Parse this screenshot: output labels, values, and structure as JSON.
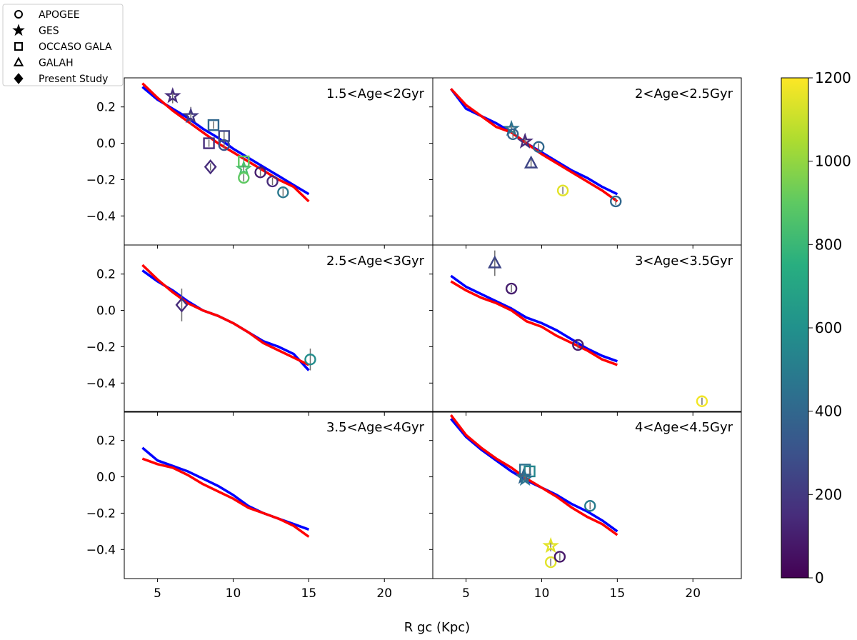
{
  "chart_data": {
    "type": "scatter",
    "xlabel": "R gc (Kpc)",
    "ylabel": "",
    "xlim": [
      2.8,
      23.2
    ],
    "ylim": [
      -0.56,
      0.36
    ],
    "x_ticks": [
      5,
      10,
      15,
      20
    ],
    "y_ticks": [
      0.2,
      0.0,
      -0.2,
      -0.4
    ],
    "x_tick_labels": [
      "5",
      "10",
      "15",
      "20"
    ],
    "y_tick_labels": [
      "0.2",
      "0.0",
      "−0.2",
      "−0.4"
    ],
    "legend": {
      "placement": "top-left",
      "entries": [
        {
          "label": "APOGEE",
          "marker": "circle"
        },
        {
          "label": "GES",
          "marker": "star"
        },
        {
          "label": "OCCASO GALA",
          "marker": "square"
        },
        {
          "label": "GALAH",
          "marker": "triangle"
        },
        {
          "label": "Present Study",
          "marker": "diamond"
        }
      ]
    },
    "colorbar": {
      "colormap": "viridis",
      "min": 0,
      "max": 1200,
      "ticks": [
        0,
        200,
        400,
        600,
        800,
        1000,
        1200
      ],
      "tick_labels": [
        "0",
        "200",
        "400",
        "600",
        "800",
        "1000",
        "1200"
      ]
    },
    "series_colors": {
      "model_blue": "#0000ff",
      "model_red": "#ff0000"
    },
    "panels": [
      {
        "title": "1.5<Age<2Gyr",
        "blue": [
          [
            4,
            0.31
          ],
          [
            5,
            0.24
          ],
          [
            6,
            0.19
          ],
          [
            7,
            0.14
          ],
          [
            8,
            0.08
          ],
          [
            9,
            0.03
          ],
          [
            10,
            -0.03
          ],
          [
            11,
            -0.08
          ],
          [
            12,
            -0.13
          ],
          [
            13,
            -0.18
          ],
          [
            14,
            -0.23
          ],
          [
            15,
            -0.28
          ]
        ],
        "red": [
          [
            4,
            0.33
          ],
          [
            5,
            0.25
          ],
          [
            6,
            0.18
          ],
          [
            7,
            0.12
          ],
          [
            8,
            0.06
          ],
          [
            9,
            0.0
          ],
          [
            10,
            -0.05
          ],
          [
            11,
            -0.1
          ],
          [
            12,
            -0.15
          ],
          [
            13,
            -0.2
          ],
          [
            14,
            -0.24
          ],
          [
            15,
            -0.32
          ]
        ],
        "points": [
          {
            "x": 6.0,
            "y": 0.26,
            "err": 0.04,
            "marker": "star",
            "c": 150
          },
          {
            "x": 7.2,
            "y": 0.15,
            "err": 0.05,
            "marker": "star",
            "c": 200
          },
          {
            "x": 8.4,
            "y": 0.0,
            "err": 0.02,
            "marker": "square",
            "c": 150
          },
          {
            "x": 8.7,
            "y": 0.1,
            "err": 0.02,
            "marker": "square",
            "c": 400
          },
          {
            "x": 9.4,
            "y": 0.04,
            "err": 0.03,
            "marker": "square",
            "c": 250
          },
          {
            "x": 9.4,
            "y": -0.01,
            "err": 0.02,
            "marker": "circle",
            "c": 300
          },
          {
            "x": 8.5,
            "y": -0.13,
            "err": 0.02,
            "marker": "diamond",
            "c": 150
          },
          {
            "x": 10.7,
            "y": -0.1,
            "err": 0.03,
            "marker": "square",
            "c": 900
          },
          {
            "x": 10.7,
            "y": -0.14,
            "err": 0.02,
            "marker": "star",
            "c": 850
          },
          {
            "x": 10.7,
            "y": -0.19,
            "err": 0.02,
            "marker": "circle",
            "c": 900
          },
          {
            "x": 11.8,
            "y": -0.16,
            "err": 0.02,
            "marker": "circle",
            "c": 100
          },
          {
            "x": 12.6,
            "y": -0.21,
            "err": 0.02,
            "marker": "circle",
            "c": 150
          },
          {
            "x": 13.3,
            "y": -0.27,
            "err": 0.02,
            "marker": "circle",
            "c": 480
          }
        ]
      },
      {
        "title": "2<Age<2.5Gyr",
        "blue": [
          [
            4,
            0.3
          ],
          [
            5,
            0.19
          ],
          [
            6,
            0.15
          ],
          [
            7,
            0.11
          ],
          [
            8,
            0.06
          ],
          [
            9,
            0.0
          ],
          [
            10,
            -0.05
          ],
          [
            11,
            -0.1
          ],
          [
            12,
            -0.15
          ],
          [
            13,
            -0.19
          ],
          [
            14,
            -0.24
          ],
          [
            15,
            -0.28
          ]
        ],
        "red": [
          [
            4,
            0.3
          ],
          [
            5,
            0.21
          ],
          [
            6,
            0.15
          ],
          [
            7,
            0.09
          ],
          [
            8,
            0.06
          ],
          [
            9,
            0.0
          ],
          [
            10,
            -0.06
          ],
          [
            11,
            -0.11
          ],
          [
            12,
            -0.16
          ],
          [
            13,
            -0.21
          ],
          [
            14,
            -0.26
          ],
          [
            15,
            -0.32
          ]
        ],
        "points": [
          {
            "x": 8.0,
            "y": 0.08,
            "err": 0.02,
            "marker": "star",
            "c": 450
          },
          {
            "x": 8.1,
            "y": 0.05,
            "err": 0.02,
            "marker": "circle",
            "c": 380
          },
          {
            "x": 8.9,
            "y": 0.01,
            "err": 0.02,
            "marker": "star",
            "c": 150
          },
          {
            "x": 9.8,
            "y": -0.02,
            "err": 0.02,
            "marker": "circle",
            "c": 400
          },
          {
            "x": 9.3,
            "y": -0.11,
            "err": 0.02,
            "marker": "triangle",
            "c": 250
          },
          {
            "x": 11.4,
            "y": -0.26,
            "err": 0.02,
            "marker": "circle",
            "c": 1150
          },
          {
            "x": 14.9,
            "y": -0.32,
            "err": 0.02,
            "marker": "circle",
            "c": 400
          }
        ]
      },
      {
        "title": "2.5<Age<3Gyr",
        "blue": [
          [
            4,
            0.22
          ],
          [
            5,
            0.16
          ],
          [
            6,
            0.11
          ],
          [
            7,
            0.05
          ],
          [
            8,
            0.0
          ],
          [
            9,
            -0.03
          ],
          [
            10,
            -0.07
          ],
          [
            11,
            -0.12
          ],
          [
            12,
            -0.17
          ],
          [
            13,
            -0.2
          ],
          [
            14,
            -0.24
          ],
          [
            15,
            -0.33
          ]
        ],
        "red": [
          [
            4,
            0.25
          ],
          [
            5,
            0.17
          ],
          [
            6,
            0.1
          ],
          [
            7,
            0.04
          ],
          [
            8,
            0.0
          ],
          [
            9,
            -0.03
          ],
          [
            10,
            -0.07
          ],
          [
            11,
            -0.12
          ],
          [
            12,
            -0.18
          ],
          [
            13,
            -0.22
          ],
          [
            14,
            -0.26
          ],
          [
            15,
            -0.3
          ]
        ],
        "points": [
          {
            "x": 6.6,
            "y": 0.03,
            "err": 0.09,
            "marker": "diamond",
            "c": 150
          },
          {
            "x": 15.1,
            "y": -0.27,
            "err": 0.06,
            "marker": "circle",
            "c": 580
          }
        ]
      },
      {
        "title": "3<Age<3.5Gyr",
        "blue": [
          [
            4,
            0.19
          ],
          [
            5,
            0.13
          ],
          [
            6,
            0.09
          ],
          [
            7,
            0.05
          ],
          [
            8,
            0.01
          ],
          [
            9,
            -0.04
          ],
          [
            10,
            -0.07
          ],
          [
            11,
            -0.11
          ],
          [
            12,
            -0.16
          ],
          [
            13,
            -0.21
          ],
          [
            14,
            -0.25
          ],
          [
            15,
            -0.28
          ]
        ],
        "red": [
          [
            4,
            0.16
          ],
          [
            5,
            0.11
          ],
          [
            6,
            0.07
          ],
          [
            7,
            0.04
          ],
          [
            8,
            0.0
          ],
          [
            9,
            -0.06
          ],
          [
            10,
            -0.09
          ],
          [
            11,
            -0.14
          ],
          [
            12,
            -0.18
          ],
          [
            13,
            -0.22
          ],
          [
            14,
            -0.27
          ],
          [
            15,
            -0.3
          ]
        ],
        "points": [
          {
            "x": 6.9,
            "y": 0.26,
            "err": 0.07,
            "marker": "triangle",
            "c": 250
          },
          {
            "x": 8.0,
            "y": 0.12,
            "err": 0.02,
            "marker": "circle",
            "c": 100
          },
          {
            "x": 12.4,
            "y": -0.19,
            "err": 0.02,
            "marker": "circle",
            "c": 100
          },
          {
            "x": 20.6,
            "y": -0.5,
            "err": 0.02,
            "marker": "circle",
            "c": 1180
          }
        ]
      },
      {
        "title": "3.5<Age<4Gyr",
        "blue": [
          [
            4,
            0.16
          ],
          [
            5,
            0.09
          ],
          [
            6,
            0.06
          ],
          [
            7,
            0.03
          ],
          [
            8,
            -0.01
          ],
          [
            9,
            -0.05
          ],
          [
            10,
            -0.1
          ],
          [
            11,
            -0.16
          ],
          [
            12,
            -0.2
          ],
          [
            13,
            -0.23
          ],
          [
            14,
            -0.26
          ],
          [
            15,
            -0.29
          ]
        ],
        "red": [
          [
            4,
            0.1
          ],
          [
            5,
            0.07
          ],
          [
            6,
            0.05
          ],
          [
            7,
            0.01
          ],
          [
            8,
            -0.04
          ],
          [
            9,
            -0.08
          ],
          [
            10,
            -0.12
          ],
          [
            11,
            -0.17
          ],
          [
            12,
            -0.2
          ],
          [
            13,
            -0.23
          ],
          [
            14,
            -0.27
          ],
          [
            15,
            -0.33
          ]
        ],
        "points": []
      },
      {
        "title": "4<Age<4.5Gyr",
        "blue": [
          [
            4,
            0.32
          ],
          [
            5,
            0.22
          ],
          [
            6,
            0.15
          ],
          [
            7,
            0.09
          ],
          [
            8,
            0.03
          ],
          [
            9,
            -0.02
          ],
          [
            10,
            -0.06
          ],
          [
            11,
            -0.1
          ],
          [
            12,
            -0.15
          ],
          [
            13,
            -0.19
          ],
          [
            14,
            -0.24
          ],
          [
            15,
            -0.3
          ]
        ],
        "red": [
          [
            4,
            0.34
          ],
          [
            5,
            0.23
          ],
          [
            6,
            0.16
          ],
          [
            7,
            0.1
          ],
          [
            8,
            0.05
          ],
          [
            9,
            -0.01
          ],
          [
            10,
            -0.06
          ],
          [
            11,
            -0.11
          ],
          [
            12,
            -0.17
          ],
          [
            13,
            -0.22
          ],
          [
            14,
            -0.26
          ],
          [
            15,
            -0.32
          ]
        ],
        "points": [
          {
            "x": 8.9,
            "y": 0.04,
            "err": 0.02,
            "marker": "square",
            "c": 450
          },
          {
            "x": 9.2,
            "y": 0.03,
            "err": 0.02,
            "marker": "square",
            "c": 550
          },
          {
            "x": 8.8,
            "y": 0.0,
            "err": 0.02,
            "marker": "star",
            "c": 400
          },
          {
            "x": 8.9,
            "y": -0.01,
            "err": 0.02,
            "marker": "star",
            "c": 450
          },
          {
            "x": 13.2,
            "y": -0.16,
            "err": 0.02,
            "marker": "circle",
            "c": 500
          },
          {
            "x": 10.6,
            "y": -0.38,
            "err": 0.03,
            "marker": "star",
            "c": 1150
          },
          {
            "x": 10.6,
            "y": -0.47,
            "err": 0.02,
            "marker": "circle",
            "c": 1150
          },
          {
            "x": 11.2,
            "y": -0.44,
            "err": 0.02,
            "marker": "circle",
            "c": 80
          }
        ]
      }
    ]
  }
}
